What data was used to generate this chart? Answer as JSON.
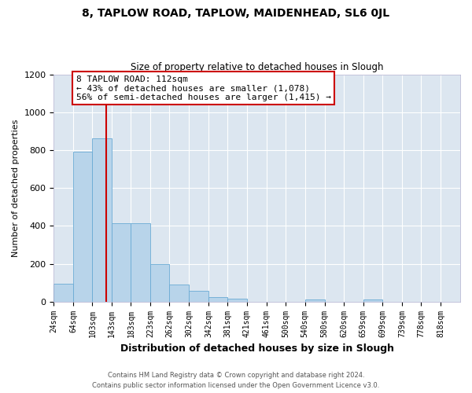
{
  "title": "8, TAPLOW ROAD, TAPLOW, MAIDENHEAD, SL6 0JL",
  "subtitle": "Size of property relative to detached houses in Slough",
  "xlabel": "Distribution of detached houses by size in Slough",
  "ylabel": "Number of detached properties",
  "bar_color": "#b8d4ea",
  "bar_edge_color": "#6aaad4",
  "plot_bg_color": "#dce6f0",
  "fig_bg_color": "#ffffff",
  "grid_color": "#ffffff",
  "bin_labels": [
    "24sqm",
    "64sqm",
    "103sqm",
    "143sqm",
    "183sqm",
    "223sqm",
    "262sqm",
    "302sqm",
    "342sqm",
    "381sqm",
    "421sqm",
    "461sqm",
    "500sqm",
    "540sqm",
    "580sqm",
    "620sqm",
    "659sqm",
    "699sqm",
    "739sqm",
    "778sqm",
    "818sqm"
  ],
  "bar_values": [
    95,
    790,
    860,
    415,
    415,
    200,
    90,
    55,
    22,
    14,
    0,
    0,
    0,
    10,
    0,
    0,
    10,
    0,
    0,
    0,
    0
  ],
  "bin_edges": [
    4,
    44,
    83,
    122,
    162,
    202,
    241,
    281,
    321,
    360,
    400,
    440,
    479,
    519,
    559,
    599,
    638,
    678,
    718,
    757,
    797,
    837
  ],
  "vline_x": 112,
  "vline_color": "#cc0000",
  "annotation_text": "8 TAPLOW ROAD: 112sqm\n← 43% of detached houses are smaller (1,078)\n56% of semi-detached houses are larger (1,415) →",
  "annotation_box_color": "#ffffff",
  "annotation_box_edge": "#cc0000",
  "ylim": [
    0,
    1200
  ],
  "yticks": [
    0,
    200,
    400,
    600,
    800,
    1000,
    1200
  ],
  "footer1": "Contains HM Land Registry data © Crown copyright and database right 2024.",
  "footer2": "Contains public sector information licensed under the Open Government Licence v3.0."
}
